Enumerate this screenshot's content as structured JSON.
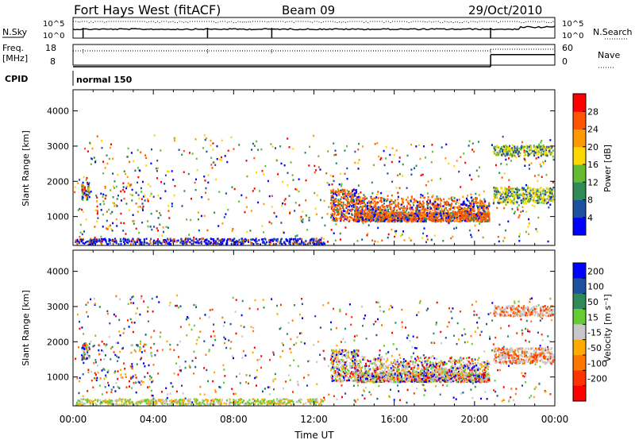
{
  "header": {
    "station": "Fort Hays West (fitACF)",
    "beam": "Beam 09",
    "date": "29/Oct/2010"
  },
  "chart_data": [
    {
      "type": "line",
      "panel": "noise",
      "left_label": "N.Sky",
      "right_label": "N.Search",
      "left_ticks": [
        "10^5",
        "10^0"
      ],
      "right_ticks": [
        "10^5",
        "10^0"
      ]
    },
    {
      "type": "line",
      "panel": "frequency",
      "left_label_line1": "Freq.",
      "left_label_line2": "[MHz]",
      "right_label": "Nave",
      "left_ticks": [
        18,
        8
      ],
      "right_ticks": [
        60,
        0
      ],
      "freq_segments": [
        {
          "from": 0.0,
          "to": 20.8,
          "value": 10.3
        },
        {
          "from": 20.8,
          "to": 24.0,
          "value": 16.2
        }
      ]
    },
    {
      "type": "table",
      "panel": "cpid",
      "label": "CPID",
      "program": "normal 150"
    },
    {
      "type": "heatmap",
      "panel": "power",
      "ylabel": "Slant Range [km]",
      "ylim": [
        180,
        4600
      ],
      "yticks": [
        1000,
        2000,
        3000,
        4000
      ],
      "xlim": [
        0,
        24
      ],
      "colorbar_label": "Power [dB]",
      "colorbar_ticks": [
        4,
        8,
        12,
        16,
        20,
        24,
        28
      ],
      "colorbar_range": [
        0,
        32
      ],
      "colors": [
        "#0000ff",
        "#1e50a0",
        "#2e8b57",
        "#66bb33",
        "#ffd700",
        "#ff9900",
        "#ff5500",
        "#ff0000"
      ]
    },
    {
      "type": "heatmap",
      "panel": "velocity",
      "ylabel": "Slant Range [km]",
      "ylim": [
        180,
        4600
      ],
      "yticks": [
        1000,
        2000,
        3000,
        4000
      ],
      "xlim": [
        0,
        24
      ],
      "xticks": [
        "00:00",
        "04:00",
        "08:00",
        "12:00",
        "16:00",
        "20:00",
        "00:00"
      ],
      "xlabel": "Time UT",
      "colorbar_label": "Velocity [m s⁻¹]",
      "colorbar_ticks": [
        "200",
        "100",
        "50",
        "15",
        "-15",
        "-50",
        "-100",
        "-200"
      ],
      "colors": [
        "#0000ff",
        "#1e50a0",
        "#2e8b57",
        "#66cc33",
        "#c8c8c8",
        "#ffaa00",
        "#ff7700",
        "#ff3300",
        "#ff0000"
      ]
    }
  ]
}
